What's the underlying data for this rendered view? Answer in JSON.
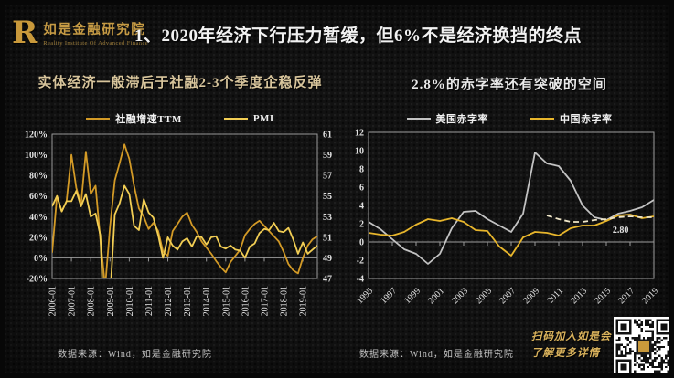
{
  "colors": {
    "brand_gold": "#c9993b",
    "axis_line": "#9b9b9b",
    "annotation": "#ffffff"
  },
  "header": {
    "logo_mark": "R",
    "logo_cn": "如是金融研究院",
    "logo_en": "Reality Institute Of Advanced Finance",
    "title": "1、2020年经济下行压力暂缓，但6%不是经济换挡的终点"
  },
  "promo": {
    "line1": "扫码加入如是会",
    "line2": "了解更多详情"
  },
  "chart_data": [
    {
      "type": "line",
      "title": "实体经济一般滞后于社融2-3个季度企稳反弹",
      "source": "数据来源：Wind，如是金融研究院",
      "legend_position": "top",
      "grid": false,
      "x_labels": [
        "2006-01",
        "2007-01",
        "2008-01",
        "2009-01",
        "2010-01",
        "2011-01",
        "2012-01",
        "2013-01",
        "2014-01",
        "2015-01",
        "2016-01",
        "2017-01",
        "2018-01",
        "2019-01"
      ],
      "x_label_rotation": -90,
      "points_per_label": 4,
      "left_axis": {
        "min": -20,
        "max": 120,
        "step": 20,
        "suffix": "%"
      },
      "right_axis": {
        "min": 47,
        "max": 61,
        "step": 2,
        "suffix": ""
      },
      "series": [
        {
          "name": "社融增速TTM",
          "color": "#d39a26",
          "axis": "left",
          "values": [
            5,
            60,
            45,
            55,
            100,
            68,
            52,
            103,
            62,
            70,
            18,
            -28,
            30,
            75,
            92,
            110,
            96,
            70,
            48,
            40,
            28,
            34,
            26,
            6,
            2,
            26,
            33,
            40,
            44,
            32,
            25,
            16,
            10,
            4,
            -3,
            -9,
            -14,
            -4,
            2,
            8,
            22,
            28,
            33,
            36,
            31,
            26,
            21,
            16,
            6,
            -6,
            -12,
            -15,
            0,
            12,
            18,
            21
          ]
        },
        {
          "name": "PMI",
          "color": "#f2ce54",
          "axis": "right",
          "values": [
            54,
            55,
            53.5,
            54.5,
            54.5,
            55.5,
            54,
            55.2,
            53,
            53.3,
            51.2,
            40,
            45,
            53.2,
            54.3,
            56,
            55.2,
            52.1,
            51.7,
            54.7,
            53.4,
            52.9,
            51.2,
            49,
            51,
            50.2,
            49.8,
            50.6,
            50.9,
            50.1,
            51.1,
            51,
            50.3,
            51,
            51.1,
            50.1,
            49.9,
            50.2,
            49.8,
            49.7,
            49,
            50.1,
            50.4,
            51.4,
            51.8,
            51.7,
            52.4,
            51.6,
            51.5,
            51.9,
            50.8,
            49.4,
            50.5,
            49.4,
            49.8,
            50.2
          ]
        }
      ],
      "x_note": "quarterly points 2006Q1-2019Q4; 社融增速TTM on left % axis, PMI on right 47-61 axis"
    },
    {
      "type": "line",
      "title": "2.8%的赤字率还有突破的空间",
      "source": "数据来源：Wind，如是金融研究院",
      "legend_position": "top",
      "grid": false,
      "x_labels": [
        "1995",
        "1997",
        "1999",
        "2001",
        "2003",
        "2005",
        "2007",
        "2009",
        "2011",
        "2013",
        "2015",
        "2017",
        "2019"
      ],
      "x_label_rotation": -45,
      "points_per_label": 2,
      "left_axis": {
        "min": -4,
        "max": 12,
        "step": 2,
        "suffix": ""
      },
      "series": [
        {
          "name": "美国赤字率",
          "color": "#c3c3c3",
          "axis": "left",
          "values": [
            2.2,
            1.4,
            0.3,
            -0.8,
            -1.3,
            -2.4,
            -1.3,
            1.5,
            3.3,
            3.4,
            2.5,
            1.8,
            1.1,
            3.1,
            9.8,
            8.6,
            8.3,
            6.7,
            4.0,
            2.7,
            2.4,
            3.1,
            3.4,
            3.8,
            4.6
          ]
        },
        {
          "name": "中国赤字率",
          "color": "#e8b62c",
          "axis": "left",
          "values": [
            1.0,
            0.8,
            0.7,
            1.1,
            1.9,
            2.5,
            2.3,
            2.6,
            2.2,
            1.3,
            1.2,
            -0.5,
            -1.5,
            0.5,
            1.1,
            1.0,
            0.7,
            1.5,
            1.8,
            1.8,
            2.3,
            2.9,
            3.0,
            2.6,
            2.8
          ]
        },
        {
          "name": "中国预算赤字率(虚线)",
          "color": "#efe6c8",
          "axis": "left",
          "dash": "6 4",
          "in_legend": false,
          "values": [
            null,
            null,
            null,
            null,
            null,
            null,
            null,
            null,
            null,
            null,
            null,
            null,
            null,
            null,
            null,
            2.9,
            2.5,
            2.2,
            2.2,
            2.4,
            2.5,
            2.7,
            2.8,
            2.7,
            2.7
          ]
        }
      ],
      "annotation": {
        "text": "2.80",
        "x_index": 21.2,
        "value": 1.0
      },
      "x_note": "annual points 1995-2019, values in % of GDP"
    }
  ]
}
